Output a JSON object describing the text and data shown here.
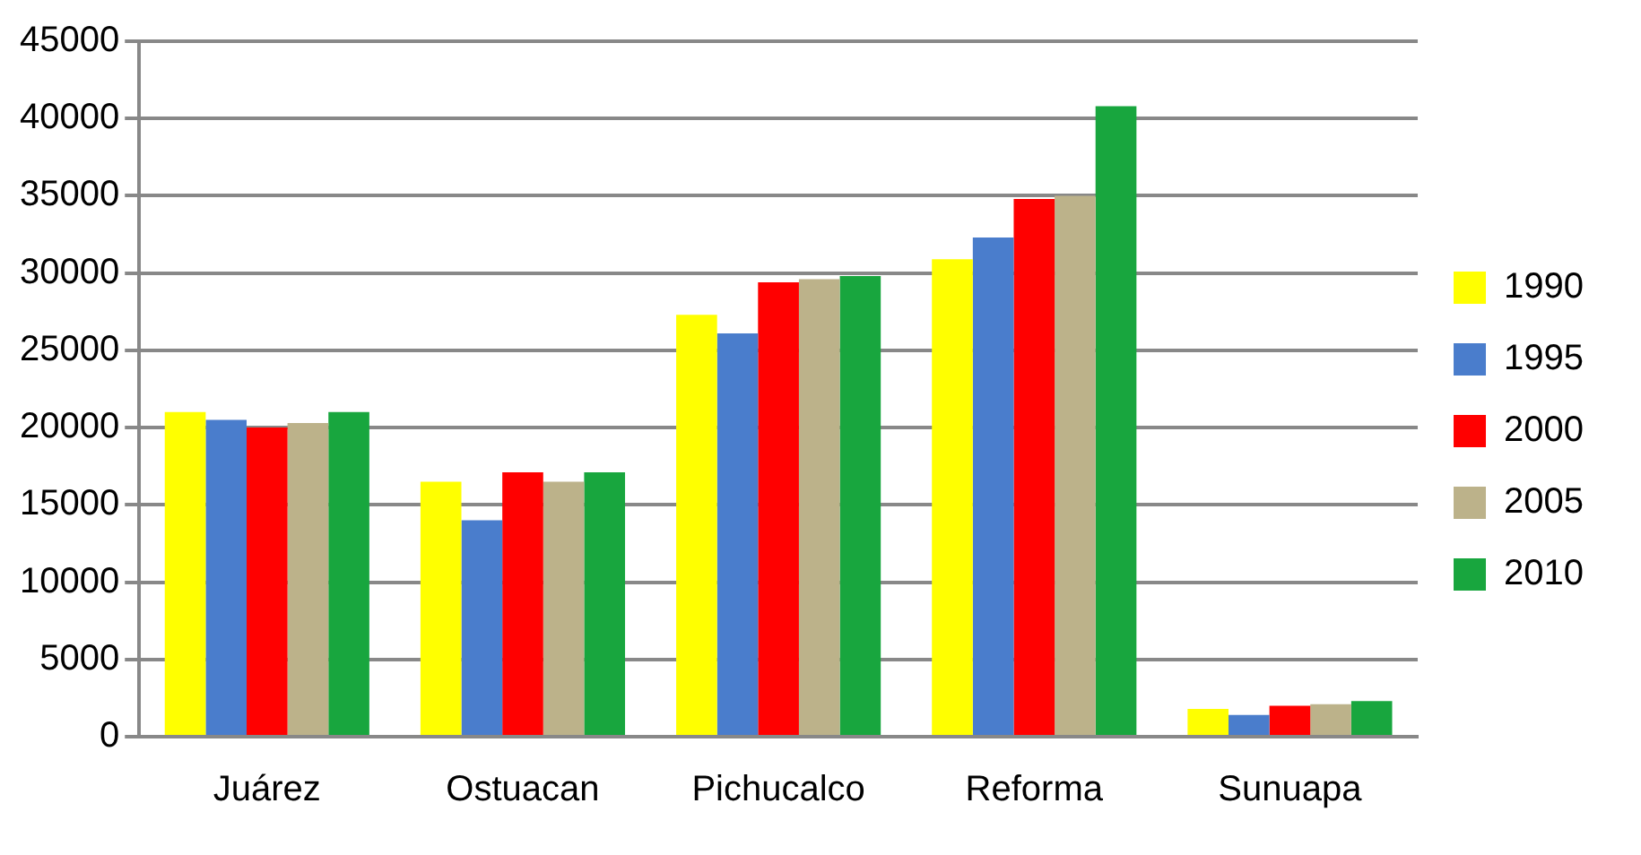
{
  "chart_data": {
    "type": "bar",
    "categories": [
      "Juárez",
      "Ostuacan",
      "Pichucalco",
      "Reforma",
      "Sunuapa"
    ],
    "series": [
      {
        "name": "1990",
        "color": "#ffff00",
        "values": [
          21000,
          16500,
          27300,
          30900,
          1800
        ]
      },
      {
        "name": "1995",
        "color": "#4a7dcc",
        "values": [
          20500,
          14000,
          26100,
          32300,
          1400
        ]
      },
      {
        "name": "2000",
        "color": "#ff0000",
        "values": [
          20000,
          17100,
          29400,
          34800,
          2000
        ]
      },
      {
        "name": "2005",
        "color": "#bcb28a",
        "values": [
          20300,
          16500,
          29600,
          35000,
          2100
        ]
      },
      {
        "name": "2010",
        "color": "#18a63e",
        "values": [
          21000,
          17100,
          29800,
          40800,
          2300
        ]
      }
    ],
    "ylim": [
      0,
      45000
    ],
    "yticks": [
      0,
      5000,
      10000,
      15000,
      20000,
      25000,
      30000,
      35000,
      40000,
      45000
    ],
    "grid": "y",
    "legend": "right"
  }
}
